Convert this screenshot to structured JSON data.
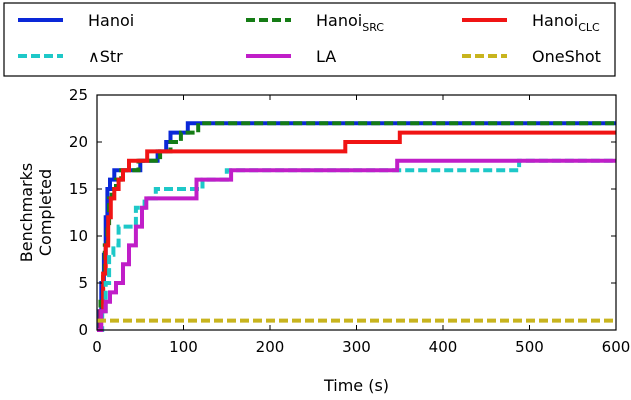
{
  "chart_data": {
    "type": "line",
    "xlabel": "Time (s)",
    "ylabel": [
      "Benchmarks",
      "Completed"
    ],
    "xlim": [
      0,
      600
    ],
    "ylim": [
      0,
      25
    ],
    "xticks": [
      0,
      100,
      200,
      300,
      400,
      500,
      600
    ],
    "yticks": [
      0,
      5,
      10,
      15,
      20,
      25
    ],
    "grid": false,
    "legend_position": "top (above plot, 3 columns)",
    "series": [
      {
        "name": "Hanoi",
        "label_main": "Hanoi",
        "label_sub": "",
        "color": "#0a28d8",
        "dash": "solid",
        "steps": [
          [
            0,
            0
          ],
          [
            3,
            2
          ],
          [
            5,
            5
          ],
          [
            8,
            8
          ],
          [
            10,
            12
          ],
          [
            12,
            15
          ],
          [
            15,
            16
          ],
          [
            20,
            17
          ],
          [
            30,
            17
          ],
          [
            40,
            17
          ],
          [
            50,
            18
          ],
          [
            70,
            19
          ],
          [
            80,
            20
          ],
          [
            85,
            21
          ],
          [
            105,
            22
          ],
          [
            600,
            22
          ]
        ]
      },
      {
        "name": "Hanoi_SRC",
        "label_main": "Hanoi",
        "label_sub": "SRC",
        "color": "#157c15",
        "dash": "dashed",
        "steps": [
          [
            0,
            0
          ],
          [
            4,
            3
          ],
          [
            7,
            6
          ],
          [
            9,
            9
          ],
          [
            12,
            11
          ],
          [
            14,
            14
          ],
          [
            17,
            15
          ],
          [
            22,
            16
          ],
          [
            28,
            17
          ],
          [
            35,
            17
          ],
          [
            48,
            18
          ],
          [
            73,
            19
          ],
          [
            85,
            20
          ],
          [
            97,
            21
          ],
          [
            117,
            22
          ],
          [
            600,
            22
          ]
        ]
      },
      {
        "name": "Hanoi_CLC",
        "label_main": "Hanoi",
        "label_sub": "CLC",
        "color": "#f01414",
        "dash": "solid",
        "steps": [
          [
            0,
            0
          ],
          [
            4,
            2
          ],
          [
            7,
            6
          ],
          [
            10,
            9
          ],
          [
            13,
            12
          ],
          [
            16,
            14
          ],
          [
            20,
            15
          ],
          [
            25,
            16
          ],
          [
            30,
            17
          ],
          [
            37,
            18
          ],
          [
            58,
            19
          ],
          [
            120,
            19
          ],
          [
            200,
            19
          ],
          [
            287,
            20
          ],
          [
            350,
            21
          ],
          [
            600,
            21
          ]
        ]
      },
      {
        "name": "∧Str",
        "label_main": "∧Str",
        "label_sub": "",
        "color": "#1ec8c8",
        "dash": "dashed",
        "steps": [
          [
            0,
            0
          ],
          [
            6,
            2
          ],
          [
            10,
            5
          ],
          [
            14,
            8
          ],
          [
            19,
            9
          ],
          [
            25,
            11
          ],
          [
            45,
            13
          ],
          [
            55,
            14
          ],
          [
            68,
            15
          ],
          [
            100,
            15
          ],
          [
            122,
            16
          ],
          [
            150,
            17
          ],
          [
            200,
            17
          ],
          [
            340,
            17
          ],
          [
            488,
            18
          ],
          [
            600,
            18
          ]
        ]
      },
      {
        "name": "LA",
        "label_main": "LA",
        "label_sub": "",
        "color": "#c01ec8",
        "dash": "solid",
        "steps": [
          [
            0,
            0
          ],
          [
            5,
            2
          ],
          [
            10,
            3
          ],
          [
            15,
            4
          ],
          [
            22,
            5
          ],
          [
            30,
            7
          ],
          [
            37,
            9
          ],
          [
            45,
            11
          ],
          [
            52,
            13
          ],
          [
            57,
            14
          ],
          [
            100,
            14
          ],
          [
            115,
            16
          ],
          [
            155,
            17
          ],
          [
            200,
            17
          ],
          [
            347,
            18
          ],
          [
            600,
            18
          ]
        ]
      },
      {
        "name": "OneShot",
        "label_main": "OneShot",
        "label_sub": "",
        "color": "#c8b41e",
        "dash": "dashed",
        "steps": [
          [
            0,
            1
          ],
          [
            600,
            1
          ]
        ]
      }
    ]
  }
}
